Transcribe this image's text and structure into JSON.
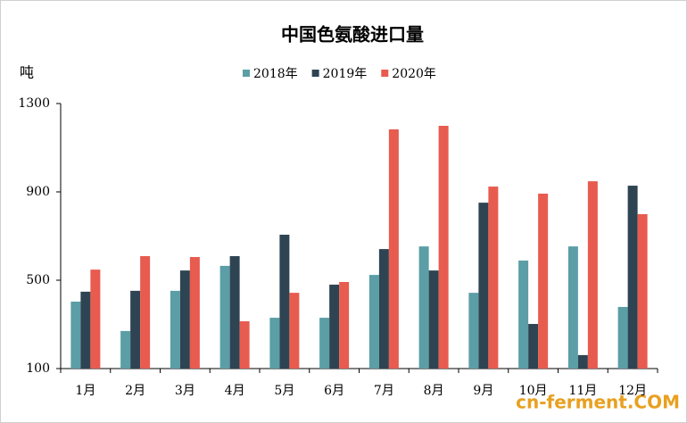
{
  "chart_data": {
    "type": "bar",
    "title": "中国色氨酸进口量",
    "y_label": "吨",
    "categories": [
      "1月",
      "2月",
      "3月",
      "4月",
      "5月",
      "6月",
      "7月",
      "8月",
      "9月",
      "10月",
      "11月",
      "12月"
    ],
    "series": [
      {
        "name": "2018年",
        "color": "#5b9ea6",
        "values": [
          403,
          270,
          452,
          565,
          330,
          330,
          524,
          653,
          443,
          589,
          653,
          379
        ]
      },
      {
        "name": "2019年",
        "color": "#2e4453",
        "values": [
          448,
          452,
          544,
          609,
          706,
          480,
          641,
          544,
          851,
          302,
          161,
          928
        ]
      },
      {
        "name": "2020年",
        "color": "#e85b4f",
        "values": [
          548,
          609,
          605,
          314,
          443,
          492,
          1183,
          1199,
          924,
          892,
          948,
          799
        ]
      }
    ],
    "ylim": [
      100,
      1300
    ],
    "yticks": [
      100,
      500,
      900,
      1300
    ],
    "grid": false,
    "watermark": "cn-ferment.COM"
  }
}
